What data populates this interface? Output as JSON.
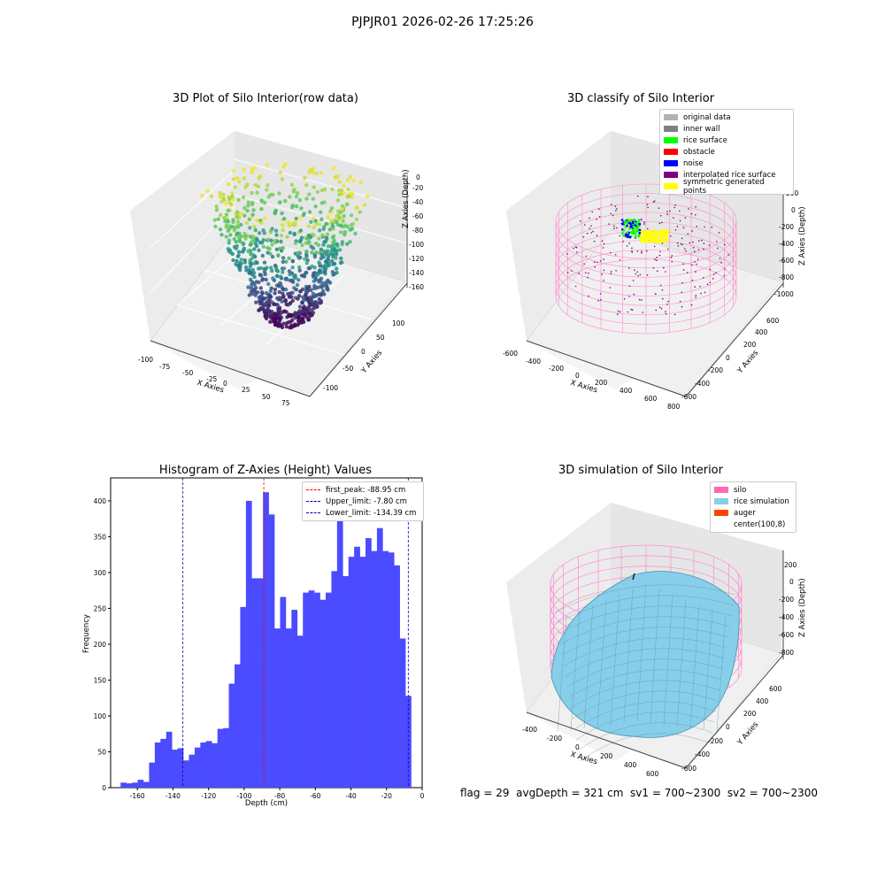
{
  "figure": {
    "suptitle": "PJPJR01 2026-02-26 17:25:26",
    "footer": "flag = 29  avgDepth = 321 cm  sv1 = 700~2300  sv2 = 700~2300"
  },
  "panels": {
    "raw": {
      "title": "3D Plot of Silo Interior(row data)",
      "xlabel": "X Axies",
      "ylabel": "Y Axies",
      "zlabel": "Z Axies (Depth)",
      "xticks": [
        "-100",
        "-75",
        "-50",
        "-25",
        "0",
        "25",
        "50",
        "75"
      ],
      "yticks": [
        "-100",
        "-50",
        "0",
        "50",
        "100"
      ],
      "zticks": [
        "0",
        "-20",
        "-40",
        "-60",
        "-80",
        "-100",
        "-120",
        "-140",
        "-160"
      ]
    },
    "classify": {
      "title": "3D classify of Silo Interior",
      "xlabel": "X Axies",
      "ylabel": "Y Axies",
      "zlabel": "Z Axies (Depth)",
      "xticks": [
        "-600",
        "-400",
        "-200",
        "0",
        "200",
        "400",
        "600",
        "800"
      ],
      "yticks": [
        "-600",
        "-400",
        "-200",
        "0",
        "200",
        "400",
        "600"
      ],
      "zticks": [
        "200",
        "0",
        "-200",
        "-400",
        "-600",
        "-800",
        "-1000"
      ],
      "legend": [
        {
          "label": "original data",
          "color": "#b3b3b3"
        },
        {
          "label": "inner wall",
          "color": "#808080"
        },
        {
          "label": "rice surface",
          "color": "#00ff00"
        },
        {
          "label": "obstacle",
          "color": "#ff0000"
        },
        {
          "label": "noise",
          "color": "#0000ff"
        },
        {
          "label": "interpolated rice surface",
          "color": "#800080"
        },
        {
          "label": "symmetric generated points",
          "color": "#ffff00"
        }
      ]
    },
    "simulation": {
      "title": "3D simulation of Silo Interior",
      "xlabel": "X Axies",
      "ylabel": "Y Axies",
      "zlabel": "Z Axies (Depth)",
      "xticks": [
        "-400",
        "-200",
        "0",
        "200",
        "400",
        "600"
      ],
      "yticks": [
        "-600",
        "-400",
        "-200",
        "0",
        "200",
        "400",
        "600"
      ],
      "zticks": [
        "200",
        "0",
        "-200",
        "-400",
        "-600",
        "-800"
      ],
      "legend": [
        {
          "label": "silo",
          "color": "#ff69b4"
        },
        {
          "label": "rice simulation",
          "color": "#87ceeb"
        },
        {
          "label": "auger",
          "color": "#ff4500"
        },
        {
          "label": "center(100,8)",
          "color": ""
        }
      ]
    }
  },
  "chart_data": {
    "type": "bar",
    "title": "Histogram of Z-Axies (Height) Values",
    "xlabel": "Depth (cm)",
    "ylabel": "Frequency",
    "xlim": [
      -175,
      0
    ],
    "ylim": [
      0,
      432
    ],
    "xticks": [
      -160,
      -140,
      -120,
      -100,
      -80,
      -60,
      -40,
      -20,
      0
    ],
    "yticks": [
      0,
      50,
      100,
      150,
      200,
      250,
      300,
      350,
      400
    ],
    "bin_width": 3.2,
    "bin_starts": [
      -169.4,
      -166.2,
      -163.0,
      -159.8,
      -156.6,
      -153.4,
      -150.2,
      -147.0,
      -143.8,
      -140.6,
      -137.4,
      -134.2,
      -131.0,
      -127.8,
      -124.6,
      -121.4,
      -118.2,
      -115.0,
      -111.8,
      -108.6,
      -105.4,
      -102.2,
      -99.0,
      -95.8,
      -92.6,
      -89.4,
      -86.2,
      -83.0,
      -79.8,
      -76.6,
      -73.4,
      -70.2,
      -67.0,
      -63.8,
      -60.6,
      -57.4,
      -54.2,
      -51.0,
      -47.8,
      -44.6,
      -41.4,
      -38.2,
      -35.0,
      -31.8,
      -28.6,
      -25.4,
      -22.2,
      -19.0,
      -15.8,
      -12.6,
      -9.4
    ],
    "values": [
      7,
      6,
      7,
      11,
      8,
      35,
      63,
      68,
      78,
      53,
      55,
      38,
      46,
      56,
      63,
      65,
      62,
      82,
      83,
      145,
      172,
      252,
      400,
      292,
      292,
      412,
      381,
      222,
      266,
      222,
      248,
      212,
      272,
      275,
      272,
      262,
      272,
      302,
      380,
      295,
      322,
      336,
      322,
      348,
      330,
      362,
      330,
      328,
      310,
      208,
      128
    ],
    "markers": [
      {
        "label": "first_peak: -88.95 cm",
        "x": -88.95,
        "color": "#ff0000"
      },
      {
        "label": "Upper_limit: -7.80 cm",
        "x": -7.8,
        "color": "#0000bb"
      },
      {
        "label": "Lower_limit: -134.39 cm",
        "x": -134.39,
        "color": "#0000bb"
      }
    ],
    "bar_color": "#4b4bff"
  }
}
